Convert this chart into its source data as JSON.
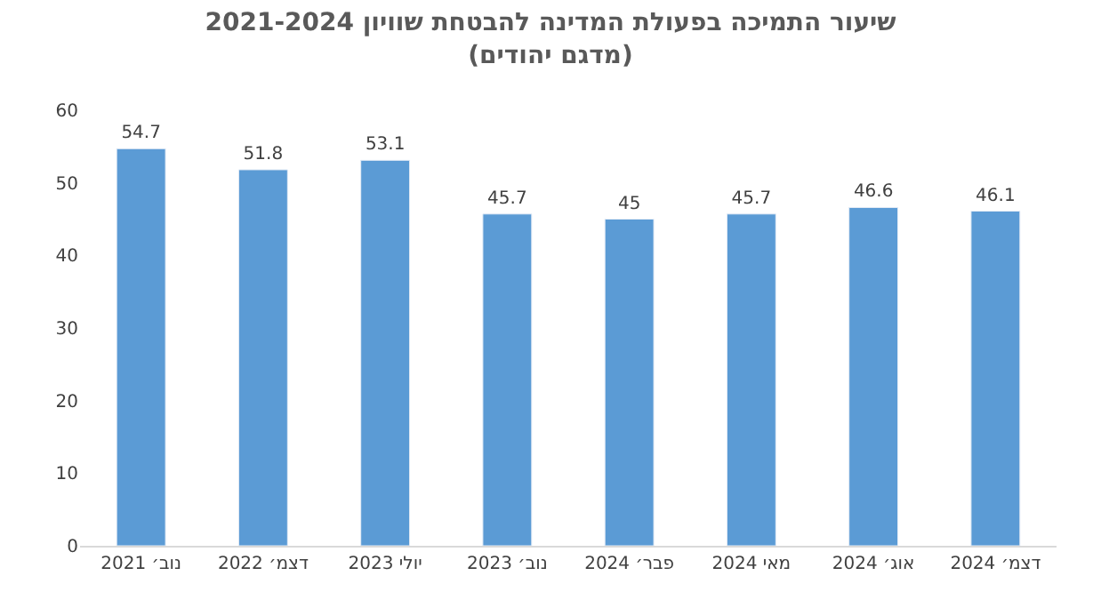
{
  "chart_data": {
    "type": "bar",
    "title": "שיעור התמיכה בפעולת המדינה להבטחת שוויון 2021-2024",
    "subtitle": "(מדגם יהודים)",
    "categories": [
      "נוב׳ 2021",
      "דצמ׳ 2022",
      "יולי 2023",
      "נוב׳ 2023",
      "פבר׳ 2024",
      "מאי 2024",
      "אוג׳ 2024",
      "דצמ׳ 2024"
    ],
    "values": [
      54.7,
      51.8,
      53.1,
      45.7,
      45,
      45.7,
      46.6,
      46.1
    ],
    "color": "#5b9bd5",
    "ylim": [
      0,
      60
    ],
    "yticks": [
      0,
      10,
      20,
      30,
      40,
      50,
      60
    ],
    "grid": false,
    "data_labels": true
  }
}
